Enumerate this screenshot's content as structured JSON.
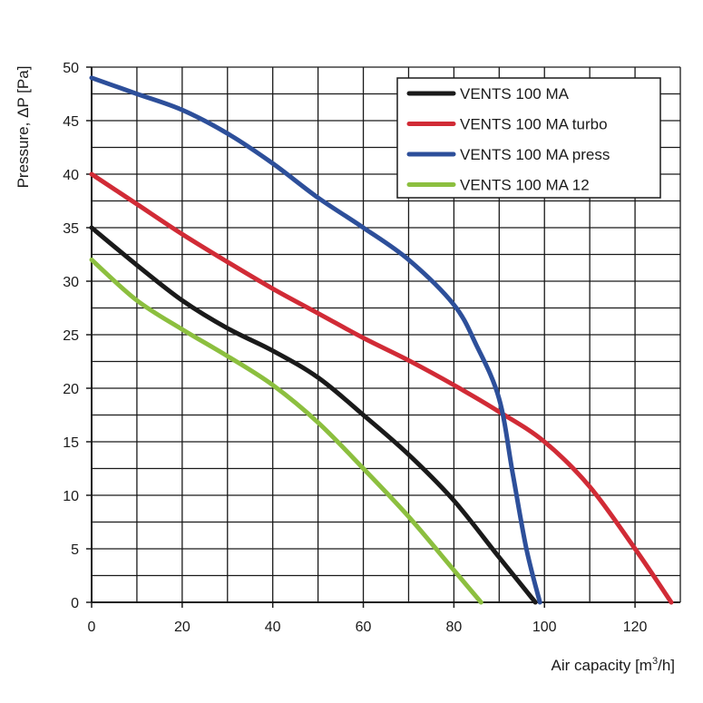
{
  "chart_data": {
    "type": "line",
    "title": "",
    "xlabel": "Air capacity [m³/h]",
    "xlabel_parts": {
      "text": "Air capacity [m",
      "superscript": "3",
      "tail": "/h]"
    },
    "ylabel": "Pressure, ΔP [Pa]",
    "xlim": [
      0,
      130
    ],
    "ylim": [
      0,
      50
    ],
    "xticks": [
      0,
      20,
      40,
      60,
      80,
      100,
      120
    ],
    "yticks": [
      0,
      5,
      10,
      15,
      20,
      25,
      30,
      35,
      40,
      45,
      50
    ],
    "grid": true,
    "legend_position": "top-right",
    "series": [
      {
        "name": "VENTS 100 MA",
        "color": "#1a1a1a",
        "points": [
          [
            0,
            35
          ],
          [
            10,
            31.5
          ],
          [
            20,
            28.2
          ],
          [
            30,
            25.6
          ],
          [
            40,
            23.5
          ],
          [
            50,
            21
          ],
          [
            60,
            17.5
          ],
          [
            70,
            13.8
          ],
          [
            80,
            9.5
          ],
          [
            90,
            4.2
          ],
          [
            98,
            0
          ]
        ]
      },
      {
        "name": "VENTS 100 MA turbo",
        "color": "#d12b36",
        "points": [
          [
            0,
            40
          ],
          [
            10,
            37.2
          ],
          [
            20,
            34.4
          ],
          [
            30,
            31.8
          ],
          [
            40,
            29.3
          ],
          [
            50,
            27
          ],
          [
            60,
            24.7
          ],
          [
            70,
            22.6
          ],
          [
            80,
            20.3
          ],
          [
            90,
            17.8
          ],
          [
            100,
            15
          ],
          [
            110,
            10.8
          ],
          [
            120,
            5
          ],
          [
            128,
            0
          ]
        ]
      },
      {
        "name": "VENTS 100 MA press",
        "color": "#2d4f9a",
        "points": [
          [
            0,
            49
          ],
          [
            10,
            47.5
          ],
          [
            20,
            46
          ],
          [
            30,
            43.8
          ],
          [
            40,
            41
          ],
          [
            50,
            37.8
          ],
          [
            60,
            35
          ],
          [
            70,
            32
          ],
          [
            80,
            27.8
          ],
          [
            85,
            24
          ],
          [
            90,
            19
          ],
          [
            93,
            12
          ],
          [
            96,
            5
          ],
          [
            99,
            0
          ]
        ]
      },
      {
        "name": "VENTS 100 MA 12",
        "color": "#8cbf3f",
        "points": [
          [
            0,
            32
          ],
          [
            10,
            28.2
          ],
          [
            20,
            25.5
          ],
          [
            30,
            23
          ],
          [
            40,
            20.3
          ],
          [
            50,
            16.8
          ],
          [
            60,
            12.5
          ],
          [
            70,
            8
          ],
          [
            80,
            3
          ],
          [
            86,
            0
          ]
        ]
      }
    ]
  }
}
